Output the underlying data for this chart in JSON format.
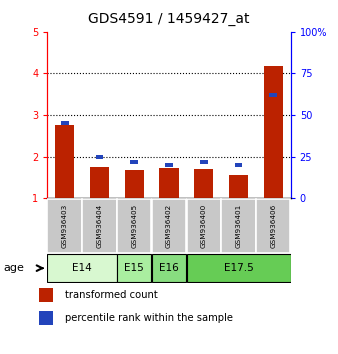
{
  "title": "GDS4591 / 1459427_at",
  "samples": [
    "GSM936403",
    "GSM936404",
    "GSM936405",
    "GSM936402",
    "GSM936400",
    "GSM936401",
    "GSM936406"
  ],
  "transformed_count": [
    2.75,
    1.75,
    1.68,
    1.72,
    1.7,
    1.57,
    4.17
  ],
  "percentile_rank": [
    45,
    25,
    22,
    20,
    22,
    20,
    62
  ],
  "age_groups": [
    {
      "label": "E14",
      "samples": [
        "GSM936403",
        "GSM936404"
      ],
      "color": "#d8f8d0"
    },
    {
      "label": "E15",
      "samples": [
        "GSM936405"
      ],
      "color": "#aaeea0"
    },
    {
      "label": "E16",
      "samples": [
        "GSM936402"
      ],
      "color": "#88dd80"
    },
    {
      "label": "E17.5",
      "samples": [
        "GSM936400",
        "GSM936401",
        "GSM936406"
      ],
      "color": "#66cc55"
    }
  ],
  "ylim_left": [
    1,
    5
  ],
  "ylim_right": [
    0,
    100
  ],
  "yticks_left": [
    1,
    2,
    3,
    4,
    5
  ],
  "yticks_right": [
    0,
    25,
    50,
    75,
    100
  ],
  "ytick_labels_right": [
    "0",
    "25",
    "50",
    "75",
    "100%"
  ],
  "bar_color_red": "#bb2200",
  "bar_color_blue": "#2244bb",
  "sample_bg_color": "#c8c8c8",
  "title_fontsize": 10,
  "tick_fontsize": 7,
  "bar_width": 0.55,
  "blue_bar_width": 0.22
}
